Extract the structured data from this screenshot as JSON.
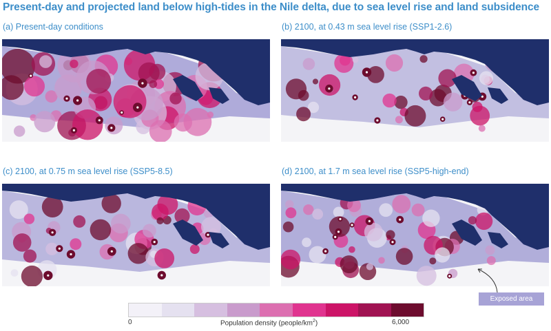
{
  "title": "Present-day and projected land below high-tides in the Nile delta, due to sea level rise and land subsidence",
  "panels": [
    {
      "label": "(a) Present-day conditions",
      "exposure": 1.0,
      "density": 1.0
    },
    {
      "label": "(b) 2100, at 0.43 m sea level rise (SSP1-2.6)",
      "exposure": 0.55,
      "density": 0.6
    },
    {
      "label": "(c) 2100, at 0.75 m sea level rise (SSP5-8.5)",
      "exposure": 0.75,
      "density": 0.8
    },
    {
      "label": "(d) 2100, at 1.7 m sea level rise (SSP5-high-end)",
      "exposure": 0.95,
      "density": 0.9
    }
  ],
  "legend": {
    "title_prefix": "Population density (people/km",
    "title_sup": "2",
    "title_suffix": ")",
    "min_label": "0",
    "max_label": "6,000",
    "colors": [
      "#f3f1f8",
      "#e5e1f0",
      "#d6bfe0",
      "#c99bcc",
      "#dc6fb0",
      "#e0348f",
      "#cc1467",
      "#a01352",
      "#6d0c2e"
    ]
  },
  "exposed_area_label": "Exposed area",
  "colors": {
    "sea": "#1f2f6b",
    "land": "#f4f4f7",
    "exposed": "#a7a3d6",
    "title": "#3d8ec9"
  }
}
